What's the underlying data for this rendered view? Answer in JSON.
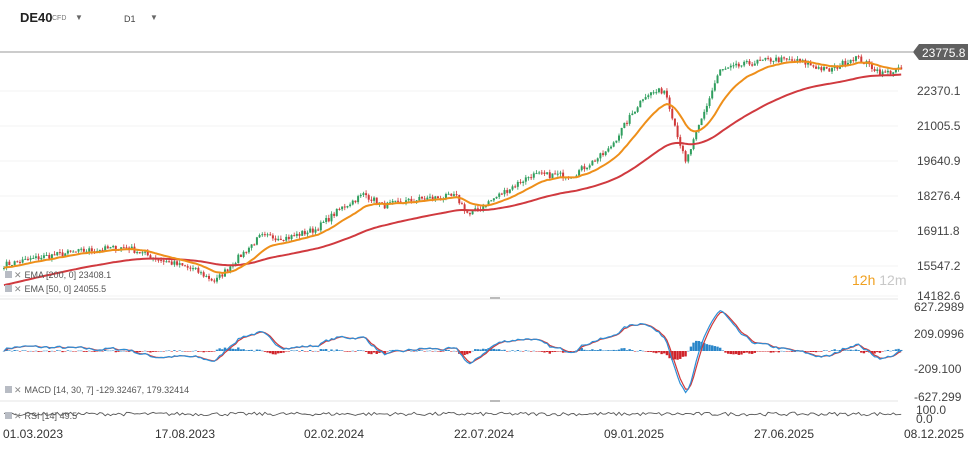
{
  "header": {
    "symbol": "DE40",
    "symbol_type": "CFD",
    "interval": "D1"
  },
  "countdown": {
    "hours": "12h",
    "minutes": "12m"
  },
  "legends": {
    "ema200": "EMA  [200,  0]  23408.1",
    "ema50": "EMA  [50,  0]  24055.5",
    "macd": "MACD  [14,  30,  7]  -129.32467,     179.32414",
    "rsi": "RSI  [14]  49.5"
  },
  "colors": {
    "bull": "#2f9e5e",
    "bear": "#d0393a",
    "ema50": "#ee8f1a",
    "ema200": "#d03a3f",
    "macd_line": "#2d8fd6",
    "signal_line": "#d0393a",
    "hist_pos": "#2a86c9",
    "hist_neg": "#d0232a",
    "rsi": "#555555",
    "price_tag": "#606060"
  },
  "chart_data": [
    {
      "type": "candlestick",
      "panel": "price",
      "ylim": [
        14182.6,
        26200
      ],
      "y_ticks": [
        "23775.8",
        "22370.1",
        "21005.5",
        "19640.9",
        "18276.4",
        "16911.8",
        "15547.2",
        "14182.6"
      ],
      "current_price": 23775.8,
      "series": [
        {
          "name": "EMA [200, 0]",
          "value": 23408.1
        },
        {
          "name": "EMA [50, 0]",
          "value": 24055.5
        }
      ],
      "x_ticks": [
        "01.03.2023",
        "17.08.2023",
        "02.02.2024",
        "22.07.2024",
        "09.01.2025",
        "27.06.2025",
        "08.12.2025"
      ],
      "x_range": [
        "01.03.2023",
        "08.12.2025"
      ],
      "price_path": [
        [
          "01.03.2023",
          15500
        ],
        [
          "15.04.2023",
          15850
        ],
        [
          "01.06.2023",
          16100
        ],
        [
          "17.07.2023",
          16250
        ],
        [
          "17.08.2023",
          15800
        ],
        [
          "01.10.2023",
          15300
        ],
        [
          "25.10.2023",
          14800
        ],
        [
          "20.11.2023",
          15800
        ],
        [
          "15.12.2023",
          16700
        ],
        [
          "15.01.2024",
          16650
        ],
        [
          "15.02.2024",
          17000
        ],
        [
          "15.03.2024",
          17900
        ],
        [
          "10.04.2024",
          18500
        ],
        [
          "01.05.2024",
          18000
        ],
        [
          "15.06.2024",
          18300
        ],
        [
          "22.07.2024",
          18400
        ],
        [
          "06.08.2024",
          17600
        ],
        [
          "15.09.2024",
          18600
        ],
        [
          "15.10.2024",
          19300
        ],
        [
          "01.12.2024",
          19300
        ],
        [
          "09.01.2025",
          20300
        ],
        [
          "20.02.2025",
          22700
        ],
        [
          "15.03.2025",
          22900
        ],
        [
          "07.04.2025",
          19800
        ],
        [
          "15.05.2025",
          23700
        ],
        [
          "15.06.2025",
          24000
        ],
        [
          "15.07.2025",
          24200
        ],
        [
          "15.08.2025",
          24100
        ],
        [
          "15.09.2025",
          23700
        ],
        [
          "15.10.2025",
          24300
        ],
        [
          "15.11.2025",
          23600
        ],
        [
          "08.12.2025",
          23775.8
        ]
      ]
    },
    {
      "type": "line",
      "panel": "macd",
      "name": "MACD [14, 30, 7]",
      "y_ticks": [
        "627.2989",
        "209.0996",
        "-209.100",
        "-627.299"
      ],
      "ylim": [
        -627.299,
        627.2989
      ],
      "macd": -129.32467,
      "signal": 179.32414
    },
    {
      "type": "line",
      "panel": "rsi",
      "name": "RSI [14]",
      "y_ticks": [
        "100.0",
        "0.0"
      ],
      "ylim": [
        0,
        100
      ],
      "value": 49.5
    }
  ]
}
